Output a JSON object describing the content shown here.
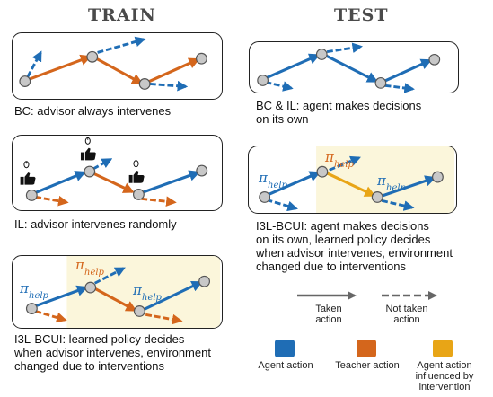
{
  "headers": {
    "train": "TRAIN",
    "test": "TEST"
  },
  "policy_label": {
    "pi": "π",
    "sub": "help"
  },
  "captions": {
    "bc": [
      "BC: advisor always intervenes"
    ],
    "il": [
      "IL: advisor intervenes randomly"
    ],
    "i3l_bcui": [
      "I3L-BCUI: learned policy decides",
      "when advisor intervenes, environment",
      "changed due to interventions"
    ],
    "bc_il_test": [
      "BC & IL: agent makes decisions",
      "on its own"
    ],
    "i3l_bcui_test": [
      "I3L-BCUI: agent makes decisions",
      "on its own, learned policy decides",
      "when advisor intervenes, environment",
      "changed due to interventions"
    ]
  },
  "legend": {
    "taken": [
      "Taken",
      "action"
    ],
    "not_taken": [
      "Not taken",
      "action"
    ],
    "agent": [
      "Agent action"
    ],
    "teacher": [
      "Teacher action"
    ],
    "influenced": [
      "Agent action",
      "influenced by",
      "intervention"
    ]
  },
  "colors": {
    "agent": "#1f6db5",
    "teacher": "#d4661c",
    "influenced": "#e8a516",
    "highlight": "#fbf6db",
    "node": "#c8c8c8"
  },
  "icons": [
    "thumbs-up-icon",
    "mouse-icon",
    "policy-pi-help-icon"
  ]
}
